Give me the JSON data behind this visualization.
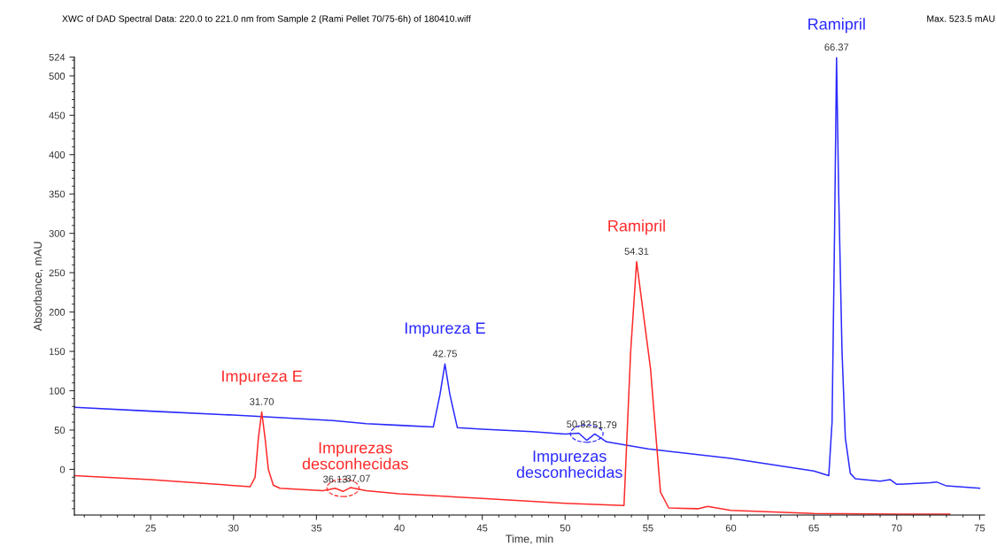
{
  "chart_data": {
    "type": "line",
    "title": "XWC of DAD Spectral Data: 220.0 to 221.0 nm from Sample 2 (Rami Pellet 70/75-6h) of 180410.wiff",
    "xlabel": "Time, min",
    "ylabel": "Absorbance, mAU",
    "xlim": [
      20.4,
      75.3
    ],
    "xticks": [
      25,
      30,
      35,
      40,
      45,
      50,
      55,
      60,
      65,
      70,
      75
    ],
    "ylim": [
      -58,
      524
    ],
    "yticks": [
      0,
      50,
      100,
      150,
      200,
      250,
      300,
      350,
      400,
      450,
      500,
      524
    ],
    "grid": false,
    "legend": false,
    "marker": "none",
    "line_style": "solid",
    "series": [
      {
        "color": "#2a2aff",
        "x": [
          20.4,
          25,
          30,
          36,
          38,
          40,
          42.05,
          42.45,
          42.75,
          43.05,
          43.5,
          45,
          48,
          50,
          50.82,
          51.3,
          51.79,
          52.5,
          55,
          60,
          65,
          65.9,
          66.1,
          66.25,
          66.37,
          66.5,
          66.7,
          66.9,
          67.2,
          67.5,
          69,
          69.6,
          70,
          72,
          72.4,
          73,
          75
        ],
        "values": [
          79,
          74,
          69,
          62,
          58,
          56,
          54,
          95,
          134,
          95,
          53,
          51,
          48,
          45,
          46,
          37,
          45,
          35,
          26,
          14,
          -2,
          -8,
          60,
          300,
          523.5,
          350,
          150,
          40,
          -5,
          -12,
          -15,
          -13,
          -19,
          -17,
          -16,
          -21,
          -24
        ]
      },
      {
        "color": "#ff2a2a",
        "x": [
          20.4,
          25,
          31,
          31.3,
          31.5,
          31.7,
          31.9,
          32.1,
          32.4,
          32.8,
          35.4,
          36.13,
          36.6,
          37.07,
          38,
          40,
          45,
          50,
          53.55,
          53.95,
          54.31,
          55.15,
          55.75,
          56.25,
          58,
          58.6,
          60,
          65,
          70,
          72,
          73.2
        ],
        "values": [
          -8,
          -13,
          -22,
          -10,
          40,
          73,
          40,
          0,
          -20,
          -24,
          -27,
          -24,
          -28,
          -23,
          -27,
          -31,
          -37,
          -43,
          -46,
          149,
          264,
          128,
          -29,
          -49,
          -50,
          -47,
          -52,
          -56,
          -57,
          -57,
          -57
        ]
      }
    ],
    "annotations": [
      {
        "text": "31.70",
        "x": 31.7,
        "y": 73
      },
      {
        "text": "Impureza E",
        "x": 31.7,
        "y": 73
      },
      {
        "text": "36.13",
        "x": 36.13,
        "y": -24
      },
      {
        "text": "37.07",
        "x": 37.07,
        "y": -23
      },
      {
        "text": "Impurezas\ndesconhecidas",
        "x": 36.6,
        "y": -26
      },
      {
        "text": "42.75",
        "x": 42.75,
        "y": 134
      },
      {
        "text": "Impureza E",
        "x": 42.75,
        "y": 134
      },
      {
        "text": "50.82",
        "x": 50.82,
        "y": 46
      },
      {
        "text": "51.79",
        "x": 51.79,
        "y": 45
      },
      {
        "text": "Impurezas\ndesconhecidas",
        "x": 51.3,
        "y": 37
      },
      {
        "text": "54.31",
        "x": 54.31,
        "y": 264
      },
      {
        "text": "Ramipril",
        "x": 54.31,
        "y": 264
      },
      {
        "text": "66.37",
        "x": 66.37,
        "y": 523.5
      },
      {
        "text": "Ramipril",
        "x": 66.37,
        "y": 523.5
      },
      "Max. 523.5 mAU"
    ]
  }
}
